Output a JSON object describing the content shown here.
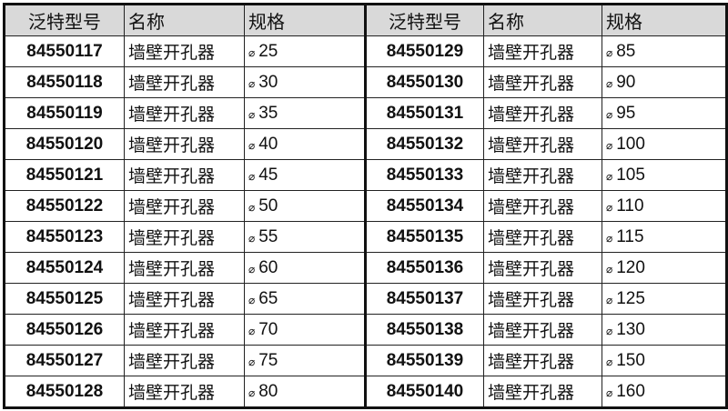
{
  "headers": [
    "泛特型号",
    "名称",
    "规格",
    "泛特型号",
    "名称",
    "规格"
  ],
  "diameter_symbol": "⌀",
  "rows": [
    {
      "left": {
        "code": "84550117",
        "name": "墙壁开孔器",
        "size": "25"
      },
      "right": {
        "code": "84550129",
        "name": "墙壁开孔器",
        "size": "85"
      }
    },
    {
      "left": {
        "code": "84550118",
        "name": "墙壁开孔器",
        "size": "30"
      },
      "right": {
        "code": "84550130",
        "name": "墙壁开孔器",
        "size": "90"
      }
    },
    {
      "left": {
        "code": "84550119",
        "name": "墙壁开孔器",
        "size": "35"
      },
      "right": {
        "code": "84550131",
        "name": "墙壁开孔器",
        "size": "95"
      }
    },
    {
      "left": {
        "code": "84550120",
        "name": "墙壁开孔器",
        "size": "40"
      },
      "right": {
        "code": "84550132",
        "name": "墙壁开孔器",
        "size": "100"
      }
    },
    {
      "left": {
        "code": "84550121",
        "name": "墙壁开孔器",
        "size": "45"
      },
      "right": {
        "code": "84550133",
        "name": "墙壁开孔器",
        "size": "105"
      }
    },
    {
      "left": {
        "code": "84550122",
        "name": "墙壁开孔器",
        "size": "50"
      },
      "right": {
        "code": "84550134",
        "name": "墙壁开孔器",
        "size": "110"
      }
    },
    {
      "left": {
        "code": "84550123",
        "name": "墙壁开孔器",
        "size": "55"
      },
      "right": {
        "code": "84550135",
        "name": "墙壁开孔器",
        "size": "115"
      }
    },
    {
      "left": {
        "code": "84550124",
        "name": "墙壁开孔器",
        "size": "60"
      },
      "right": {
        "code": "84550136",
        "name": "墙壁开孔器",
        "size": "120"
      }
    },
    {
      "left": {
        "code": "84550125",
        "name": "墙壁开孔器",
        "size": "65"
      },
      "right": {
        "code": "84550137",
        "name": "墙壁开孔器",
        "size": "125"
      }
    },
    {
      "left": {
        "code": "84550126",
        "name": "墙壁开孔器",
        "size": "70"
      },
      "right": {
        "code": "84550138",
        "name": "墙壁开孔器",
        "size": "130"
      }
    },
    {
      "left": {
        "code": "84550127",
        "name": "墙壁开孔器",
        "size": "75"
      },
      "right": {
        "code": "84550139",
        "name": "墙壁开孔器",
        "size": "150"
      }
    },
    {
      "left": {
        "code": "84550128",
        "name": "墙壁开孔器",
        "size": "80"
      },
      "right": {
        "code": "84550140",
        "name": "墙壁开孔器",
        "size": "160"
      }
    }
  ]
}
